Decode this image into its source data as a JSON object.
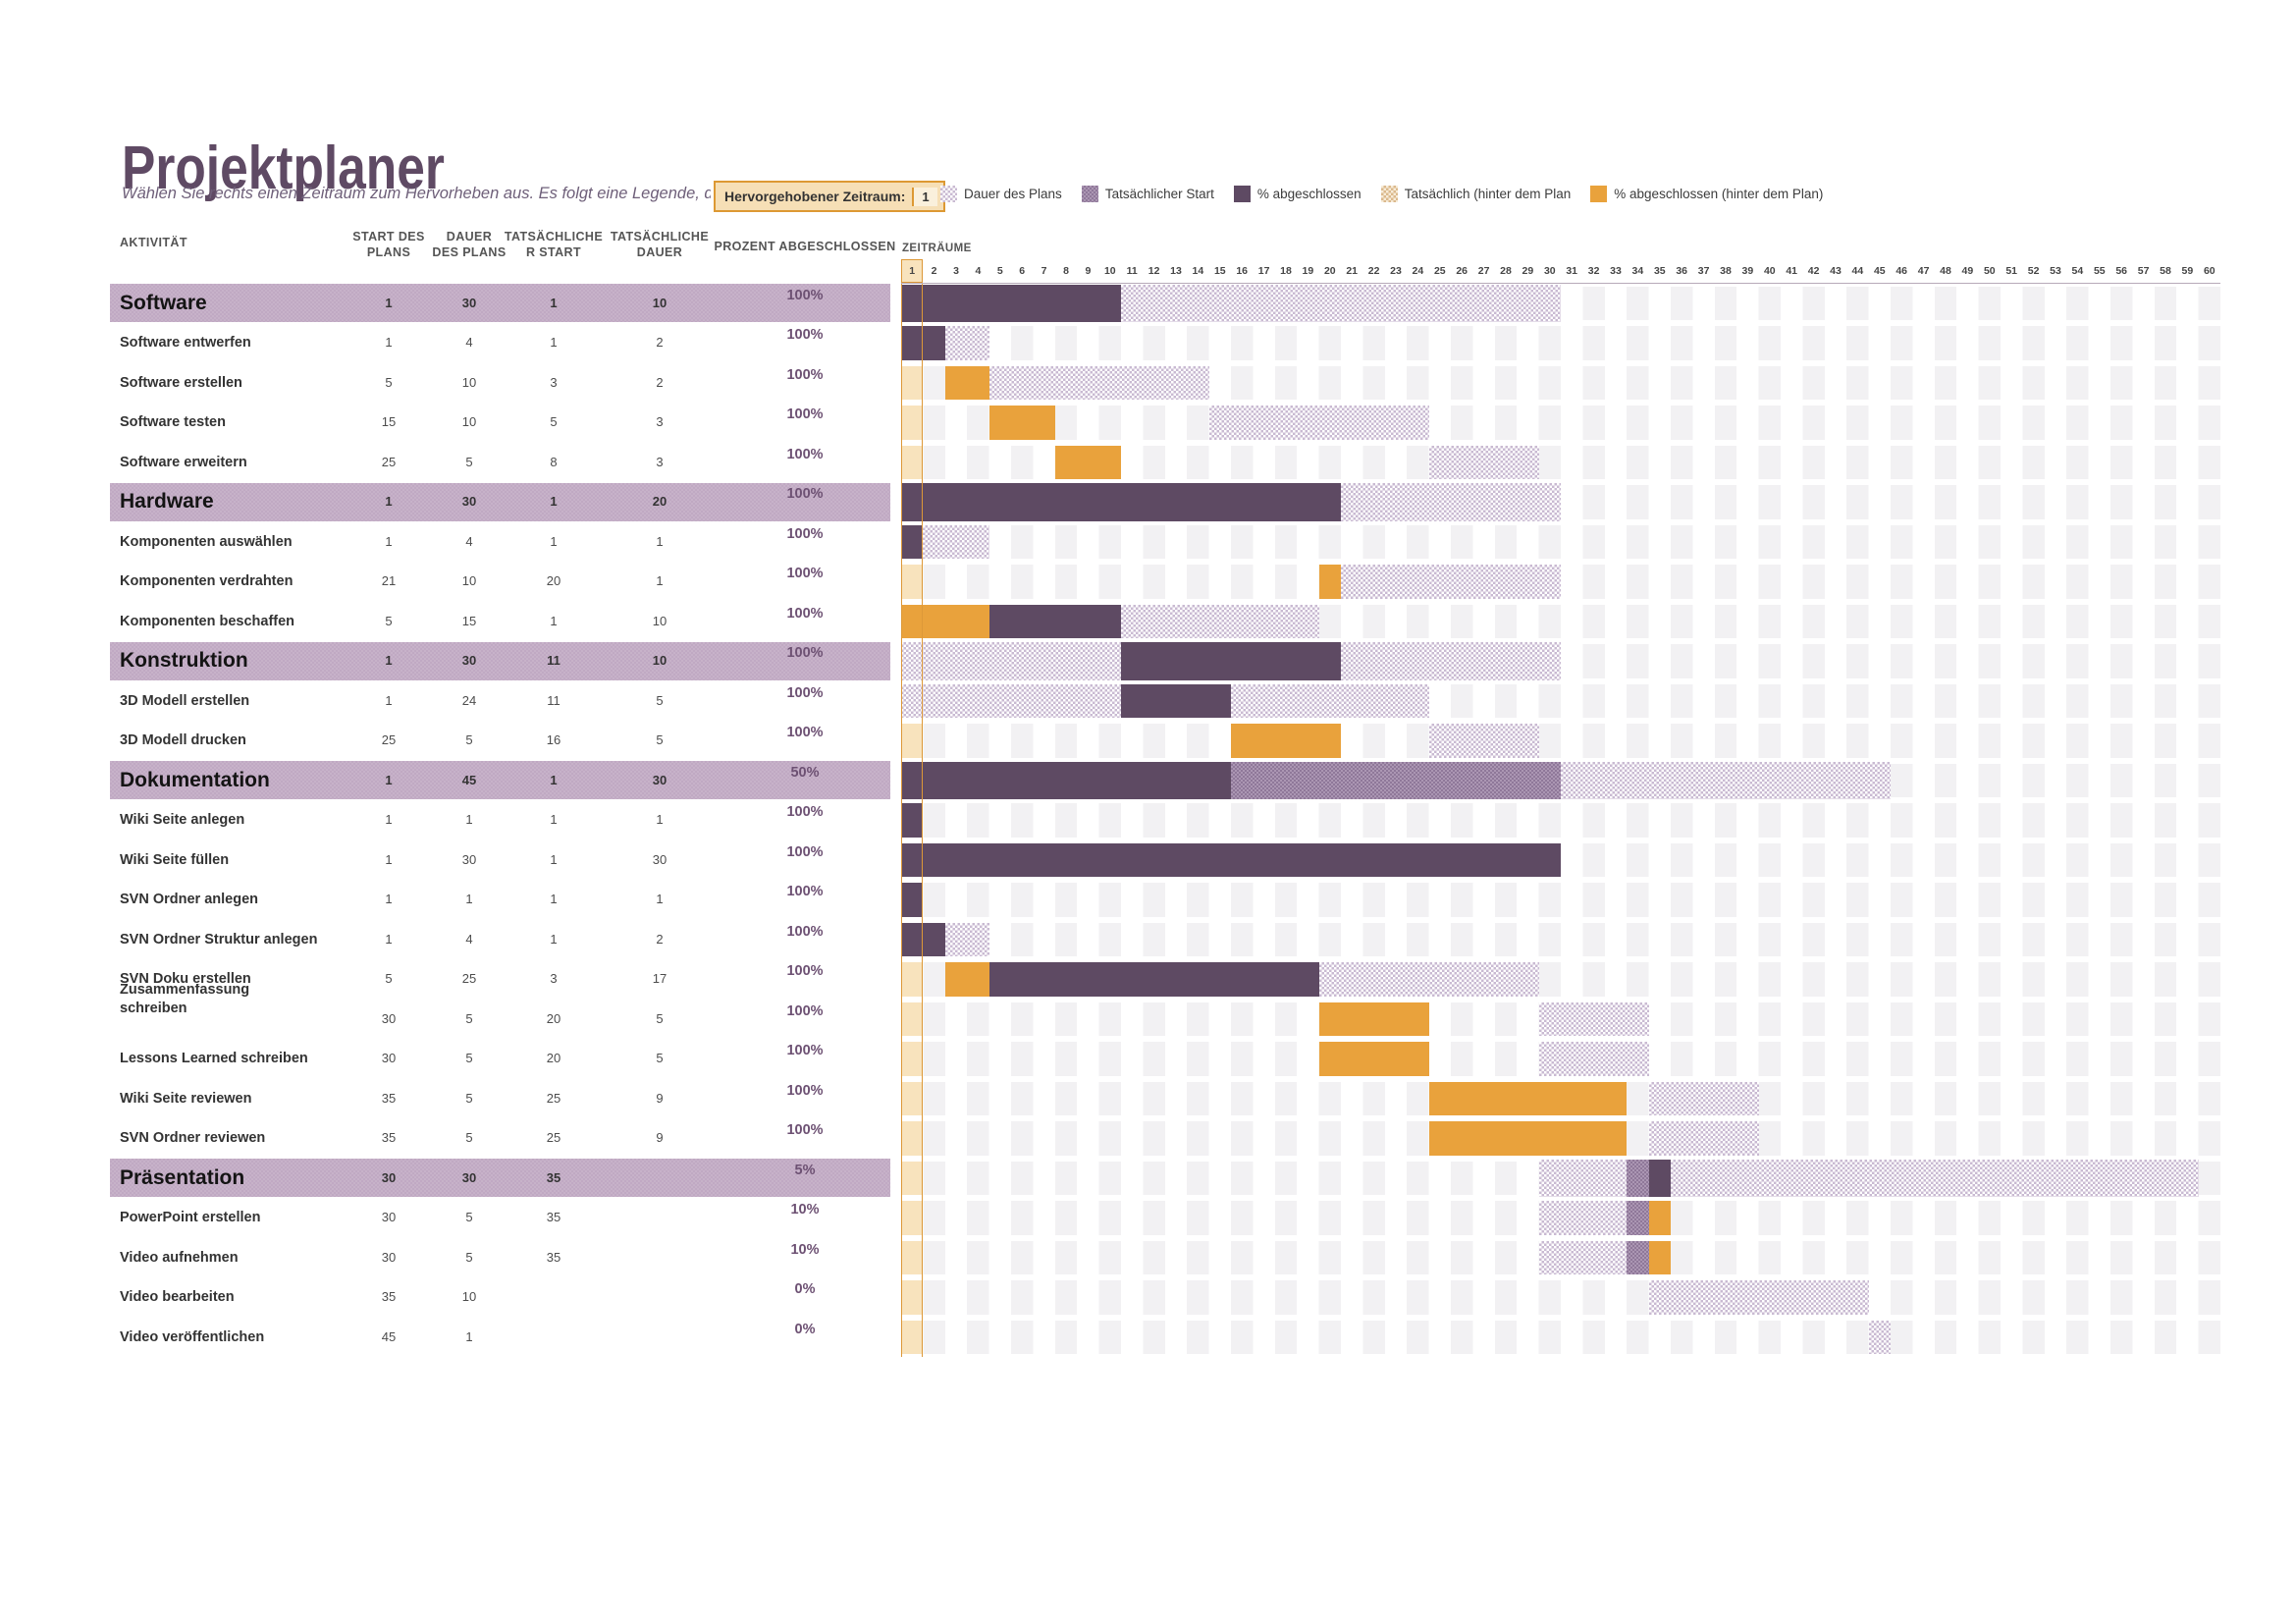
{
  "header": {
    "title": "Projektplaner",
    "subtitle": "Wählen Sie rechts einen Zeitraum zum Hervorheben aus.  Es folgt eine Legende, die das Diagramm beschreibt.",
    "highlight_label": "Hervorgehobener Zeitraum:",
    "highlight_value": "1"
  },
  "legend": {
    "items": [
      {
        "label": "Dauer des Plans",
        "swatch": "plan"
      },
      {
        "label": "Tatsächlicher Start",
        "swatch": "medium"
      },
      {
        "label": "% abgeschlossen",
        "swatch": "dark"
      },
      {
        "label": "Tatsächlich (hinter dem Plan",
        "swatch": "tan"
      },
      {
        "label": "% abgeschlossen (hinter dem Plan)",
        "swatch": "orange"
      }
    ]
  },
  "table_headers": {
    "activity": "AKTIVITÄT",
    "plan_start": "START DES\nPLANS",
    "plan_duration": "DAUER\nDES PLANS",
    "actual_start": "TATSÄCHLICHE\nR START",
    "actual_duration": "TATSÄCHLICHE\nDAUER",
    "percent_complete": "PROZENT ABGESCHLOSSEN"
  },
  "timeline": {
    "label": "ZEITRÄUME",
    "periods": 60,
    "highlighted_period": 1
  },
  "rows": [
    {
      "name": "Software",
      "type": "section",
      "values": [
        "1",
        "30",
        "1",
        "10"
      ],
      "pct": "100%",
      "bars": [
        {
          "c": "dark",
          "s": 1,
          "e": 10
        },
        {
          "c": "plan",
          "s": 11,
          "e": 30
        }
      ]
    },
    {
      "name": "Software entwerfen",
      "type": "task",
      "values": [
        "1",
        "4",
        "1",
        "2"
      ],
      "pct": "100%",
      "bars": [
        {
          "c": "dark",
          "s": 1,
          "e": 2
        },
        {
          "c": "plan",
          "s": 3,
          "e": 4
        }
      ]
    },
    {
      "name": "Software erstellen",
      "type": "task",
      "values": [
        "5",
        "10",
        "3",
        "2"
      ],
      "pct": "100%",
      "bars": [
        {
          "c": "orange",
          "s": 3,
          "e": 4
        },
        {
          "c": "plan",
          "s": 5,
          "e": 14
        }
      ]
    },
    {
      "name": "Software testen",
      "type": "task",
      "values": [
        "15",
        "10",
        "5",
        "3"
      ],
      "pct": "100%",
      "bars": [
        {
          "c": "orange",
          "s": 5,
          "e": 7
        },
        {
          "c": "plan",
          "s": 15,
          "e": 24
        }
      ]
    },
    {
      "name": "Software erweitern",
      "type": "task",
      "values": [
        "25",
        "5",
        "8",
        "3"
      ],
      "pct": "100%",
      "bars": [
        {
          "c": "orange",
          "s": 8,
          "e": 10
        },
        {
          "c": "plan",
          "s": 25,
          "e": 29
        }
      ]
    },
    {
      "name": "Hardware",
      "type": "section",
      "values": [
        "1",
        "30",
        "1",
        "20"
      ],
      "pct": "100%",
      "bars": [
        {
          "c": "dark",
          "s": 1,
          "e": 20
        },
        {
          "c": "plan",
          "s": 21,
          "e": 30
        }
      ]
    },
    {
      "name": "Komponenten auswählen",
      "type": "task",
      "values": [
        "1",
        "4",
        "1",
        "1"
      ],
      "pct": "100%",
      "bars": [
        {
          "c": "dark",
          "s": 1,
          "e": 1
        },
        {
          "c": "plan",
          "s": 2,
          "e": 4
        }
      ]
    },
    {
      "name": "Komponenten verdrahten",
      "type": "task",
      "values": [
        "21",
        "10",
        "20",
        "1"
      ],
      "pct": "100%",
      "bars": [
        {
          "c": "orange",
          "s": 20,
          "e": 20
        },
        {
          "c": "plan",
          "s": 21,
          "e": 30
        }
      ]
    },
    {
      "name": "Komponenten beschaffen",
      "type": "task",
      "values": [
        "5",
        "15",
        "1",
        "10"
      ],
      "pct": "100%",
      "bars": [
        {
          "c": "orange",
          "s": 1,
          "e": 4
        },
        {
          "c": "dark",
          "s": 5,
          "e": 10
        },
        {
          "c": "plan",
          "s": 11,
          "e": 19
        }
      ]
    },
    {
      "name": "Konstruktion",
      "type": "section",
      "values": [
        "1",
        "30",
        "11",
        "10"
      ],
      "pct": "100%",
      "bars": [
        {
          "c": "plan",
          "s": 1,
          "e": 10
        },
        {
          "c": "dark",
          "s": 11,
          "e": 20
        },
        {
          "c": "plan",
          "s": 21,
          "e": 30
        }
      ]
    },
    {
      "name": "3D Modell erstellen",
      "type": "task",
      "values": [
        "1",
        "24",
        "11",
        "5"
      ],
      "pct": "100%",
      "bars": [
        {
          "c": "plan",
          "s": 1,
          "e": 10
        },
        {
          "c": "dark",
          "s": 11,
          "e": 15
        },
        {
          "c": "plan",
          "s": 16,
          "e": 24
        }
      ]
    },
    {
      "name": "3D Modell drucken",
      "type": "task",
      "values": [
        "25",
        "5",
        "16",
        "5"
      ],
      "pct": "100%",
      "bars": [
        {
          "c": "orange",
          "s": 16,
          "e": 20
        },
        {
          "c": "plan",
          "s": 25,
          "e": 29
        }
      ]
    },
    {
      "name": "Dokumentation",
      "type": "section",
      "values": [
        "1",
        "45",
        "1",
        "30"
      ],
      "pct": "50%",
      "bars": [
        {
          "c": "dark",
          "s": 1,
          "e": 15
        },
        {
          "c": "medium",
          "s": 16,
          "e": 30
        },
        {
          "c": "plan",
          "s": 31,
          "e": 45
        }
      ]
    },
    {
      "name": "Wiki Seite anlegen",
      "type": "task",
      "values": [
        "1",
        "1",
        "1",
        "1"
      ],
      "pct": "100%",
      "bars": [
        {
          "c": "dark",
          "s": 1,
          "e": 1
        }
      ]
    },
    {
      "name": "Wiki Seite füllen",
      "type": "task",
      "values": [
        "1",
        "30",
        "1",
        "30"
      ],
      "pct": "100%",
      "bars": [
        {
          "c": "dark",
          "s": 1,
          "e": 30
        }
      ]
    },
    {
      "name": "SVN Ordner anlegen",
      "type": "task",
      "values": [
        "1",
        "1",
        "1",
        "1"
      ],
      "pct": "100%",
      "bars": [
        {
          "c": "dark",
          "s": 1,
          "e": 1
        }
      ]
    },
    {
      "name": "SVN Ordner Struktur anlegen",
      "type": "task",
      "values": [
        "1",
        "4",
        "1",
        "2"
      ],
      "pct": "100%",
      "bars": [
        {
          "c": "dark",
          "s": 1,
          "e": 2
        },
        {
          "c": "plan",
          "s": 3,
          "e": 4
        }
      ]
    },
    {
      "name": "SVN Doku erstellen",
      "type": "task",
      "values": [
        "5",
        "25",
        "3",
        "17"
      ],
      "pct": "100%",
      "bars": [
        {
          "c": "orange",
          "s": 3,
          "e": 4
        },
        {
          "c": "dark",
          "s": 5,
          "e": 19
        },
        {
          "c": "plan",
          "s": 20,
          "e": 29
        }
      ]
    },
    {
      "name": "Zusammenfassung schreiben",
      "type": "task",
      "wrap": true,
      "values": [
        "30",
        "5",
        "20",
        "5"
      ],
      "pct": "100%",
      "bars": [
        {
          "c": "orange",
          "s": 20,
          "e": 24
        },
        {
          "c": "plan",
          "s": 30,
          "e": 34
        }
      ]
    },
    {
      "name": "Lessons Learned schreiben",
      "type": "task",
      "values": [
        "30",
        "5",
        "20",
        "5"
      ],
      "pct": "100%",
      "bars": [
        {
          "c": "orange",
          "s": 20,
          "e": 24
        },
        {
          "c": "plan",
          "s": 30,
          "e": 34
        }
      ]
    },
    {
      "name": "Wiki Seite reviewen",
      "type": "task",
      "values": [
        "35",
        "5",
        "25",
        "9"
      ],
      "pct": "100%",
      "bars": [
        {
          "c": "orange",
          "s": 25,
          "e": 33
        },
        {
          "c": "plan",
          "s": 35,
          "e": 39
        }
      ]
    },
    {
      "name": "SVN Ordner reviewen",
      "type": "task",
      "values": [
        "35",
        "5",
        "25",
        "9"
      ],
      "pct": "100%",
      "bars": [
        {
          "c": "orange",
          "s": 25,
          "e": 33
        },
        {
          "c": "plan",
          "s": 35,
          "e": 39
        }
      ]
    },
    {
      "name": "Präsentation",
      "type": "section",
      "values": [
        "30",
        "30",
        "35",
        ""
      ],
      "pct": "5%",
      "bars": [
        {
          "c": "plan",
          "s": 30,
          "e": 33
        },
        {
          "c": "medium",
          "s": 34,
          "e": 34
        },
        {
          "c": "dark",
          "s": 35,
          "e": 35
        },
        {
          "c": "plan",
          "s": 36,
          "e": 59
        }
      ]
    },
    {
      "name": "PowerPoint erstellen",
      "type": "task",
      "values": [
        "30",
        "5",
        "35",
        ""
      ],
      "pct": "10%",
      "bars": [
        {
          "c": "plan",
          "s": 30,
          "e": 33
        },
        {
          "c": "medium",
          "s": 34,
          "e": 34
        },
        {
          "c": "orange",
          "s": 35,
          "e": 35
        }
      ]
    },
    {
      "name": "Video aufnehmen",
      "type": "task",
      "values": [
        "30",
        "5",
        "35",
        ""
      ],
      "pct": "10%",
      "bars": [
        {
          "c": "plan",
          "s": 30,
          "e": 33
        },
        {
          "c": "medium",
          "s": 34,
          "e": 34
        },
        {
          "c": "orange",
          "s": 35,
          "e": 35
        }
      ]
    },
    {
      "name": "Video bearbeiten",
      "type": "task",
      "values": [
        "35",
        "10",
        "",
        ""
      ],
      "pct": "0%",
      "bars": [
        {
          "c": "plan",
          "s": 35,
          "e": 44
        }
      ]
    },
    {
      "name": "Video veröffentlichen",
      "type": "task",
      "values": [
        "45",
        "1",
        "",
        ""
      ],
      "pct": "0%",
      "bars": [
        {
          "c": "plan",
          "s": 45,
          "e": 45
        }
      ]
    }
  ],
  "colors": {
    "title": "#5f4a64",
    "plan_bar": "#c9bad2",
    "actual_start_bar": "#9c85a3",
    "complete_bar": "#5e4a63",
    "behind_plan_bar": "#dbb98c",
    "complete_behind_plan_bar": "#e9a23c",
    "section_band": "#c3aec5",
    "highlight_fill": "#f8e3bd",
    "highlight_border": "#dd9838",
    "grid_stripe": "#f2f1f3",
    "percent_text": "#6d5173"
  }
}
